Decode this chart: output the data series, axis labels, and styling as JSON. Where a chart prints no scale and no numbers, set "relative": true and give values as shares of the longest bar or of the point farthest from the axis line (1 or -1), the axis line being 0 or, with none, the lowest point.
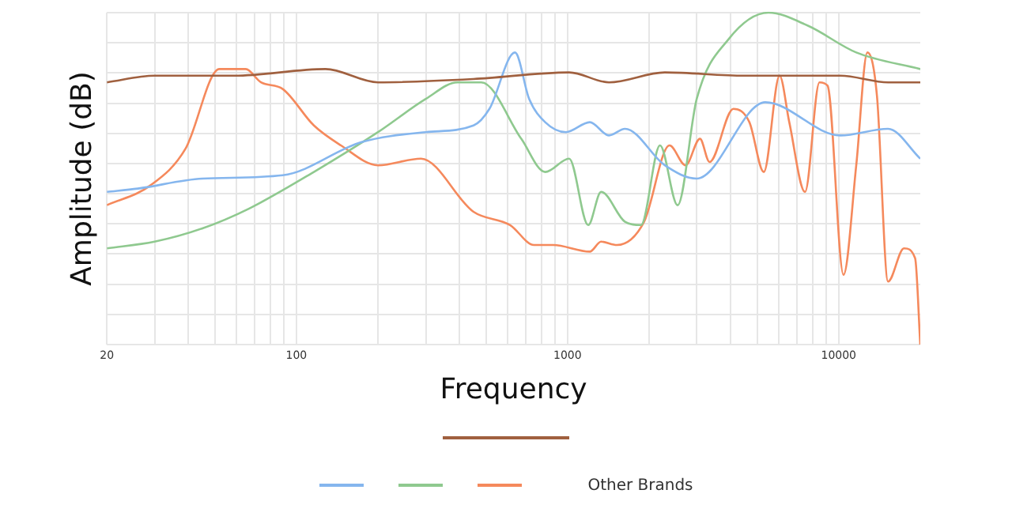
{
  "chart_data": {
    "type": "line",
    "xlabel": "Frequency",
    "ylabel": "Amplitude (dB)",
    "relative": true,
    "log": "x",
    "grid": true,
    "legend": "bottom",
    "marker": "none",
    "line_style": "solid",
    "xlim": [
      20,
      20000
    ],
    "xticks": [
      20,
      {
        "value": 30,
        "label": null
      },
      {
        "value": 40,
        "label": null
      },
      {
        "value": 50,
        "label": null
      },
      {
        "value": 60,
        "label": null
      },
      {
        "value": 70,
        "label": null
      },
      {
        "value": 80,
        "label": null
      },
      {
        "value": 90,
        "label": null
      },
      100,
      {
        "value": 200,
        "label": null
      },
      {
        "value": 300,
        "label": null
      },
      {
        "value": 400,
        "label": null
      },
      {
        "value": 500,
        "label": null
      },
      {
        "value": 600,
        "label": null
      },
      {
        "value": 700,
        "label": null
      },
      {
        "value": 800,
        "label": null
      },
      {
        "value": 900,
        "label": null
      },
      1000,
      {
        "value": 2000,
        "label": null
      },
      {
        "value": 3000,
        "label": null
      },
      {
        "value": 4000,
        "label": null
      },
      {
        "value": 5000,
        "label": null
      },
      {
        "value": 6000,
        "label": null
      },
      {
        "value": 7000,
        "label": null
      },
      {
        "value": 8000,
        "label": null
      },
      {
        "value": 9000,
        "label": null
      },
      10000
    ],
    "series": [
      {
        "color": "#a0603f",
        "x": [
          20,
          30,
          59,
          128,
          200,
          450,
          1014,
          1422,
          2285,
          4497,
          10140,
          15210,
          20000
        ],
        "values": [
          0.79,
          0.81,
          0.81,
          0.83,
          0.79,
          0.8,
          0.82,
          0.79,
          0.82,
          0.81,
          0.81,
          0.79,
          0.79
        ]
      },
      {
        "color": "#85b6ee",
        "x": [
          20,
          26,
          45,
          89,
          174,
          300,
          450,
          515,
          640,
          722,
          827,
          986,
          1208,
          1422,
          1629,
          2285,
          2995,
          5361,
          10140,
          15210,
          20000
        ],
        "values": [
          0.46,
          0.47,
          0.5,
          0.51,
          0.61,
          0.64,
          0.66,
          0.71,
          0.88,
          0.74,
          0.67,
          0.64,
          0.67,
          0.63,
          0.65,
          0.54,
          0.5,
          0.73,
          0.63,
          0.65,
          0.56
        ]
      },
      {
        "color": "#8fc98f",
        "x": [
          20,
          30,
          45,
          67,
          116,
          200,
          300,
          393,
          481,
          675,
          827,
          1014,
          1192,
          1330,
          1629,
          1866,
          2193,
          2547,
          2995,
          3926,
          5510,
          7730,
          11610,
          20000
        ],
        "values": [
          0.29,
          0.31,
          0.35,
          0.41,
          0.52,
          0.64,
          0.74,
          0.79,
          0.79,
          0.62,
          0.52,
          0.56,
          0.36,
          0.46,
          0.37,
          0.36,
          0.6,
          0.42,
          0.74,
          0.92,
          1,
          0.96,
          0.88,
          0.83
        ]
      },
      {
        "name": "Other Brands",
        "color": "#f5895c",
        "x": [
          20,
          29,
          39,
          52,
          59,
          65,
          74,
          89,
          116,
          146,
          200,
          288,
          450,
          614,
          752,
          885,
          1208,
          1330,
          1521,
          1916,
          2378,
          2725,
          3079,
          3340,
          4091,
          4685,
          5296,
          6055,
          6574,
          7515,
          8497,
          9100,
          10420,
          11610,
          12760,
          13840,
          15210,
          17420,
          19140,
          20000
        ],
        "values": [
          0.42,
          0.48,
          0.59,
          0.83,
          0.83,
          0.83,
          0.79,
          0.77,
          0.66,
          0.6,
          0.54,
          0.56,
          0.4,
          0.36,
          0.3,
          0.3,
          0.28,
          0.31,
          0.3,
          0.37,
          0.6,
          0.54,
          0.62,
          0.55,
          0.71,
          0.67,
          0.52,
          0.81,
          0.67,
          0.46,
          0.79,
          0.78,
          0.21,
          0.54,
          0.88,
          0.75,
          0.19,
          0.29,
          0.26,
          0
        ]
      }
    ]
  }
}
